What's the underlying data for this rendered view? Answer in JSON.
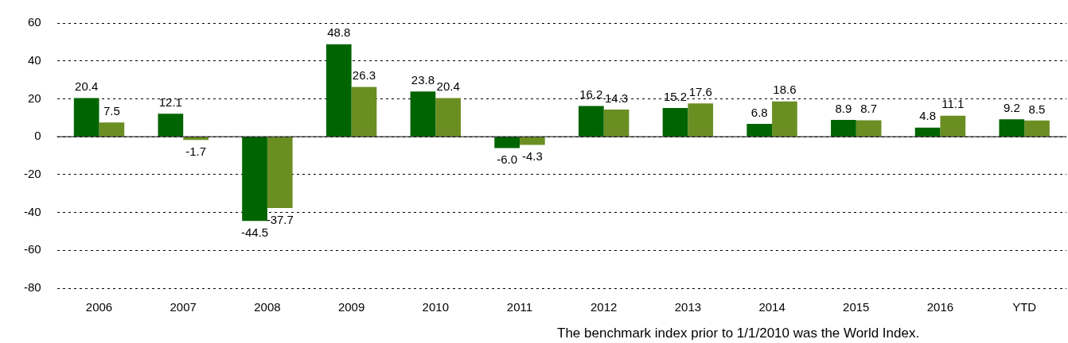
{
  "chart_data": {
    "type": "bar",
    "categories": [
      "2006",
      "2007",
      "2008",
      "2009",
      "2010",
      "2011",
      "2012",
      "2013",
      "2014",
      "2015",
      "2016",
      "YTD"
    ],
    "series": [
      {
        "color": "#006400",
        "values": [
          20.4,
          12.1,
          -44.5,
          48.8,
          23.8,
          -6.0,
          16.2,
          15.2,
          6.8,
          8.9,
          4.8,
          9.2
        ],
        "value_labels": [
          "20.4",
          "12.1",
          "-44.5",
          "48.8",
          "23.8",
          "-6.0",
          "16.2",
          "15.2",
          "6.8",
          "8.9",
          "4.8",
          "9.2"
        ]
      },
      {
        "color": "#6b8e23",
        "values": [
          7.5,
          -1.7,
          -37.7,
          26.3,
          20.4,
          -4.3,
          14.3,
          17.6,
          18.6,
          8.7,
          11.1,
          8.5
        ],
        "value_labels": [
          "7.5",
          "-1.7",
          "-37.7",
          "26.3",
          "20.4",
          "-4.3",
          "14.3",
          "17.6",
          "18.6",
          "8.7",
          "11.1",
          "8.5"
        ]
      }
    ],
    "ylim": [
      -80,
      60
    ],
    "yticks": [
      -80,
      -60,
      -40,
      -20,
      0,
      20,
      40,
      60
    ],
    "grid": "y",
    "legend": false,
    "annotations": [
      "The benchmark index prior to 1/1/2010 was the World Index."
    ]
  }
}
